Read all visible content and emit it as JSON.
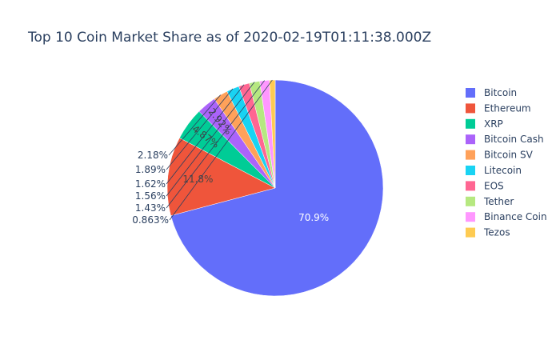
{
  "chart_data": {
    "type": "pie",
    "title": "Top 10 Coin Market Share as of 2020-02-19T01:11:38.000Z",
    "legend_position": "right",
    "sort": "descending",
    "direction": "clockwise",
    "slices": [
      {
        "label": "Bitcoin",
        "value": 70.9,
        "text": "70.9%",
        "color": "#636efa"
      },
      {
        "label": "Ethereum",
        "value": 11.8,
        "text": "11.8%",
        "color": "#EF553B"
      },
      {
        "label": "XRP",
        "value": 4.87,
        "text": "4.87%",
        "color": "#00cc96"
      },
      {
        "label": "Bitcoin Cash",
        "value": 2.92,
        "text": "2.92%",
        "color": "#ab63fa"
      },
      {
        "label": "Bitcoin SV",
        "value": 2.18,
        "text": "2.18%",
        "color": "#FFA15A"
      },
      {
        "label": "Litecoin",
        "value": 1.89,
        "text": "1.89%",
        "color": "#19d3f3"
      },
      {
        "label": "EOS",
        "value": 1.62,
        "text": "1.62%",
        "color": "#FF6692"
      },
      {
        "label": "Tether",
        "value": 1.56,
        "text": "1.56%",
        "color": "#B6E880"
      },
      {
        "label": "Binance Coin",
        "value": 1.43,
        "text": "1.43%",
        "color": "#FF97FF"
      },
      {
        "label": "Tezos",
        "value": 0.863,
        "text": "0.863%",
        "color": "#FECB52"
      }
    ]
  }
}
